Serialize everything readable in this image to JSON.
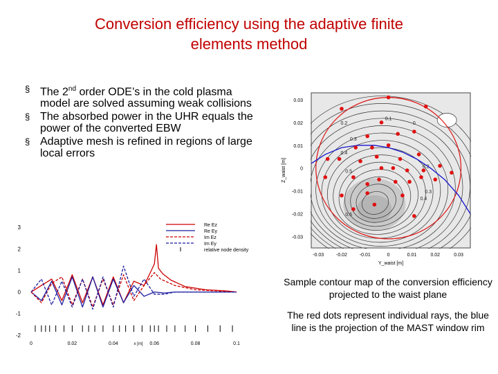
{
  "slide": {
    "title_line1": "Conversion efficiency using the adaptive finite",
    "title_line2": "elements method",
    "bullets": [
      {
        "pre": "The 2",
        "sup": "nd",
        "post": " order ODE’s in the cold plasma model are solved assuming weak collisions"
      },
      {
        "pre": "The absorbed power in the UHR equals the power of the converted EBW",
        "sup": "",
        "post": ""
      },
      {
        "pre": "Adaptive mesh is refined in regions of large local errors",
        "sup": "",
        "post": ""
      }
    ],
    "bullet_symbol": "§",
    "caption1": "Sample contour map of the conversion efficiency projected to the waist plane",
    "caption2": "The red dots represent individual rays, the blue line is the projection of the MAST window rim"
  },
  "chart_data": [
    {
      "type": "line",
      "x_ticks": [
        "0",
        "0.02",
        "0.04",
        "0.06",
        "0.08",
        "0.1"
      ],
      "x_tick_values": [
        0,
        0.02,
        0.04,
        0.06,
        0.08,
        0.1
      ],
      "x_unit_label": "x [m]",
      "y_ticks": [
        "3",
        "2",
        "1",
        "0",
        "-1",
        "-2"
      ],
      "y_tick_values": [
        3,
        2,
        1,
        0,
        -1,
        -2
      ],
      "xlim": [
        0,
        0.1
      ],
      "ylim": [
        -2.2,
        3.2
      ],
      "legend": [
        "Re Ez",
        "Re Ey",
        "Im Ez",
        "Im Ey",
        "relative node density"
      ],
      "legend_placement": "top-right",
      "series_colors": [
        "#cc0000",
        "#1a1aa0",
        "#cc0000",
        "#1a1aa0",
        "#000000"
      ],
      "series": [
        {
          "name": "Re Ez",
          "style": "solid",
          "x": [
            0,
            0.005,
            0.01,
            0.015,
            0.02,
            0.025,
            0.03,
            0.035,
            0.04,
            0.045,
            0.05,
            0.055,
            0.058,
            0.06,
            0.061,
            0.062,
            0.064,
            0.068,
            0.075,
            0.085,
            0.095,
            0.1
          ],
          "y": [
            0,
            0.3,
            0.6,
            -0.4,
            0.8,
            -0.5,
            0.7,
            -0.6,
            0.7,
            -0.5,
            0.5,
            0.3,
            0.9,
            1.3,
            2.2,
            1.1,
            0.85,
            0.55,
            0.25,
            0.1,
            0.05,
            0
          ]
        },
        {
          "name": "Re Ey",
          "style": "solid",
          "x": [
            0,
            0.005,
            0.01,
            0.015,
            0.02,
            0.025,
            0.03,
            0.035,
            0.04,
            0.045,
            0.05,
            0.055,
            0.06,
            0.065,
            0.07,
            0.08,
            0.1
          ],
          "y": [
            0,
            -0.4,
            0.5,
            -0.6,
            0.7,
            -0.7,
            0.7,
            -0.7,
            0.6,
            -0.5,
            0.3,
            -0.2,
            0,
            -0.05,
            0,
            0,
            0
          ]
        },
        {
          "name": "Im Ez",
          "style": "dashed",
          "x": [
            0,
            0.005,
            0.01,
            0.015,
            0.02,
            0.025,
            0.03,
            0.035,
            0.04,
            0.045,
            0.05,
            0.055,
            0.06,
            0.063,
            0.07,
            0.08,
            0.1
          ],
          "y": [
            0,
            -0.5,
            0.4,
            0.7,
            -0.6,
            0.6,
            -0.7,
            0.6,
            -0.6,
            0.8,
            -0.4,
            0.3,
            0.9,
            0.6,
            0.3,
            0.1,
            0
          ]
        },
        {
          "name": "Im Ey",
          "style": "dashed",
          "x": [
            0,
            0.005,
            0.01,
            0.015,
            0.02,
            0.025,
            0.03,
            0.035,
            0.04,
            0.045,
            0.05,
            0.055,
            0.06,
            0.065,
            0.07,
            0.08,
            0.1
          ],
          "y": [
            0,
            0.6,
            -0.6,
            0.5,
            -0.7,
            0.6,
            -0.8,
            0.7,
            -0.7,
            1.2,
            -0.2,
            0.6,
            -0.1,
            -0.1,
            0,
            0,
            0
          ]
        }
      ],
      "node_density_x": [
        0.002,
        0.005,
        0.007,
        0.009,
        0.012,
        0.016,
        0.02,
        0.025,
        0.028,
        0.031,
        0.035,
        0.04,
        0.043,
        0.046,
        0.05,
        0.054,
        0.058,
        0.06,
        0.062,
        0.066,
        0.07,
        0.075,
        0.08,
        0.086,
        0.092,
        0.098
      ]
    },
    {
      "type": "contour",
      "x_ticks": [
        "-0.03",
        "-0.02",
        "-0.01",
        "0",
        "0.01",
        "0.02",
        "0.03"
      ],
      "x_tick_values": [
        -0.03,
        -0.02,
        -0.01,
        0,
        0.01,
        0.02,
        0.03
      ],
      "y_ticks": [
        "0.03",
        "0.02",
        "0.01",
        "0",
        "-0.01",
        "-0.02",
        "-0.03"
      ],
      "y_tick_values": [
        0.03,
        0.02,
        0.01,
        0,
        -0.01,
        -0.02,
        -0.03
      ],
      "xlabel": "Y_waist [m]",
      "ylabel": "Z_waist [m]",
      "xlim": [
        -0.033,
        0.035
      ],
      "ylim": [
        -0.035,
        0.033
      ],
      "contour_labels": [
        {
          "text": "0.1",
          "x": 0,
          "y": 0.021
        },
        {
          "text": "0",
          "x": 0.011,
          "y": 0.019
        },
        {
          "text": "0.2",
          "x": -0.019,
          "y": 0.019
        },
        {
          "text": "0.3",
          "x": -0.015,
          "y": 0.012
        },
        {
          "text": "0.4",
          "x": -0.019,
          "y": 0.006
        },
        {
          "text": "0.5",
          "x": -0.017,
          "y": -0.002
        },
        {
          "text": "0.2",
          "x": 0.016,
          "y": 0
        },
        {
          "text": "0.3",
          "x": 0.017,
          "y": -0.011
        },
        {
          "text": "0.4",
          "x": 0.015,
          "y": -0.014
        },
        {
          "text": "0.6",
          "x": -0.017,
          "y": -0.021
        }
      ],
      "rays_y": [
        0.0,
        -0.02,
        0.016,
        -0.003,
        -0.009,
        0.004,
        0.011,
        -0.007,
        0.0,
        -0.014,
        -0.005,
        0.005,
        0.013,
        -0.026,
        -0.021,
        -0.012,
        -0.003,
        0.002,
        0.008,
        0.015,
        0.022,
        -0.027,
        -0.015,
        -0.009,
        -0.004,
        0.003,
        0.009,
        0.014,
        0.02,
        0.027,
        -0.02,
        -0.009,
        -0.006,
        0.006,
        -0.015,
        0.011
      ],
      "rays_z": [
        0.031,
        0.026,
        0.027,
        0.02,
        0.014,
        0.015,
        0.016,
        0.009,
        0.01,
        0.009,
        0.005,
        0.004,
        0.006,
        0.004,
        0.004,
        0.003,
        0.0,
        0.0,
        -0.001,
        -0.001,
        0.001,
        -0.004,
        -0.004,
        -0.007,
        -0.005,
        -0.006,
        -0.006,
        -0.004,
        -0.005,
        -0.002,
        -0.012,
        -0.011,
        -0.016,
        -0.012,
        -0.018,
        -0.021
      ],
      "rim_y": [
        -0.033,
        -0.027,
        -0.02,
        -0.013,
        -0.006,
        0.0,
        0.006,
        0.012,
        0.018,
        0.024,
        0.03,
        0.035
      ],
      "rim_z": [
        0.002,
        0.006,
        0.009,
        0.01,
        0.01,
        0.009,
        0.007,
        0.004,
        0.0,
        -0.005,
        -0.012,
        -0.02
      ],
      "circle": {
        "cy": 0.0,
        "cz": 0.0,
        "r": 0.031
      }
    }
  ]
}
